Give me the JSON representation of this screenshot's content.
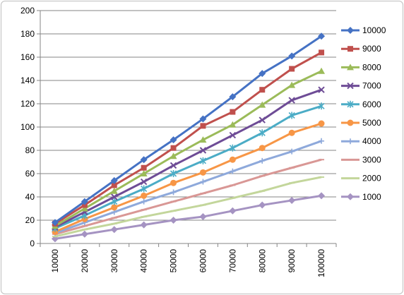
{
  "chart_data": {
    "type": "line",
    "title": "",
    "xlabel": "",
    "ylabel": "",
    "x": [
      10000,
      20000,
      30000,
      40000,
      50000,
      60000,
      70000,
      80000,
      90000,
      100000
    ],
    "x_tick_labels": [
      "10000",
      "20000",
      "30000",
      "40000",
      "50000",
      "60000",
      "70000",
      "80000",
      "90000",
      "100000"
    ],
    "ylim": [
      0,
      200
    ],
    "y_ticks": [
      0,
      20,
      40,
      60,
      80,
      100,
      120,
      140,
      160,
      180,
      200
    ],
    "y_tick_labels": [
      "0",
      "20",
      "40",
      "60",
      "80",
      "100",
      "120",
      "140",
      "160",
      "180",
      "200"
    ],
    "grid": {
      "horizontal": true,
      "vertical": false
    },
    "legend_position": "right",
    "series": [
      {
        "name": "10000",
        "color": "#4572C4",
        "marker": "diamond",
        "values": [
          18,
          36,
          54,
          72,
          89,
          107,
          126,
          146,
          161,
          178
        ]
      },
      {
        "name": "9000",
        "color": "#C0504D",
        "marker": "square",
        "values": [
          17,
          33,
          50,
          65,
          82,
          101,
          113,
          132,
          150,
          164
        ]
      },
      {
        "name": "8000",
        "color": "#9BBB59",
        "marker": "triangle",
        "values": [
          15,
          30,
          45,
          60,
          75,
          89,
          102,
          119,
          136,
          148
        ]
      },
      {
        "name": "7000",
        "color": "#6E4C96",
        "marker": "x",
        "values": [
          14,
          27,
          40,
          53,
          67,
          80,
          93,
          106,
          123,
          132
        ]
      },
      {
        "name": "6000",
        "color": "#4BACC6",
        "marker": "star",
        "values": [
          13,
          24,
          36,
          47,
          60,
          71,
          82,
          95,
          110,
          118
        ]
      },
      {
        "name": "5000",
        "color": "#F79646",
        "marker": "circle",
        "values": [
          10,
          21,
          31,
          41,
          52,
          61,
          72,
          82,
          95,
          103
        ]
      },
      {
        "name": "4000",
        "color": "#8EA9DB",
        "marker": "plus",
        "values": [
          9,
          18,
          27,
          36,
          44,
          53,
          62,
          71,
          79,
          88
        ]
      },
      {
        "name": "3000",
        "color": "#D99795",
        "marker": "dash",
        "values": [
          8,
          15,
          22,
          29,
          36,
          43,
          50,
          58,
          65,
          72
        ]
      },
      {
        "name": "2000",
        "color": "#C3D69B",
        "marker": "dash",
        "values": [
          6,
          12,
          17,
          23,
          28,
          33,
          39,
          45,
          52,
          57
        ]
      },
      {
        "name": "1000",
        "color": "#A593C2",
        "marker": "diamond",
        "values": [
          4,
          8,
          12,
          16,
          20,
          23,
          28,
          33,
          37,
          41
        ]
      }
    ]
  }
}
